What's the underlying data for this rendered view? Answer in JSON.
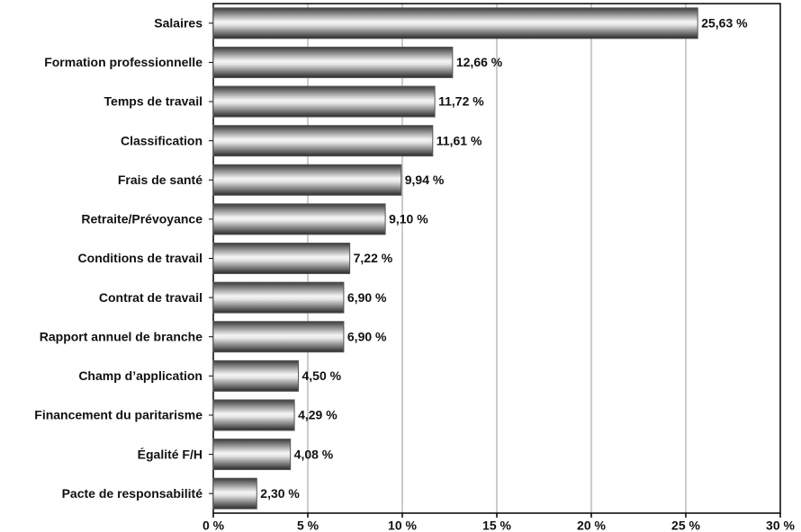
{
  "chart_data": {
    "type": "hbar",
    "categories": [
      "Salaires",
      "Formation professionnelle",
      "Temps de travail",
      "Classification",
      "Frais de santé",
      "Retraite/Prévoyance",
      "Conditions de travail",
      "Contrat de travail",
      "Rapport annuel de branche",
      "Champ d’application",
      "Financement du paritarisme",
      "Égalité F/H",
      "Pacte de responsabilité"
    ],
    "values": [
      25.63,
      12.66,
      11.72,
      11.61,
      9.94,
      9.1,
      7.22,
      6.9,
      6.9,
      4.5,
      4.29,
      4.08,
      2.3
    ],
    "value_labels": [
      "25,63 %",
      "12,66 %",
      "11,72 %",
      "11,61 %",
      "9,94 %",
      "9,10 %",
      "7,22 %",
      "6,90 %",
      "6,90 %",
      "4,50 %",
      "4,29 %",
      "4,08 %",
      "2,30 %"
    ],
    "color": "#555555",
    "xlim": [
      0,
      30
    ],
    "xticks": [
      {
        "value": 0,
        "label": "0 %"
      },
      {
        "value": 5,
        "label": "5 %"
      },
      {
        "value": 10,
        "label": "10 %"
      },
      {
        "value": 15,
        "label": "15 %"
      },
      {
        "value": 20,
        "label": "20 %"
      },
      {
        "value": 25,
        "label": "25 %"
      },
      {
        "value": 30,
        "label": "30 %"
      }
    ],
    "grid": true
  }
}
